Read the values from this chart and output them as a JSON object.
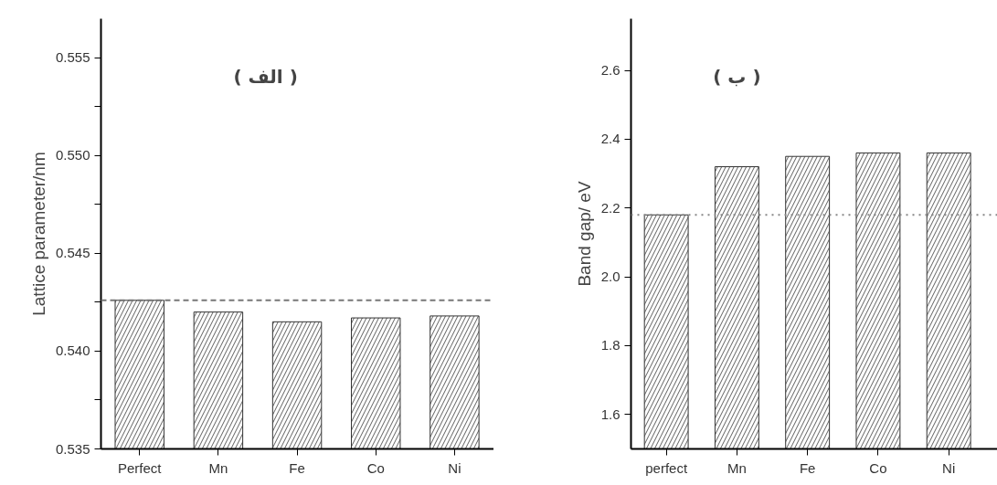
{
  "chart_data": [
    {
      "type": "bar",
      "title": "( الف )",
      "ylabel": "Lattice parameter/nm",
      "categories": [
        "Perfect",
        "Mn",
        "Fe",
        "Co",
        "Ni"
      ],
      "values": [
        0.5426,
        0.542,
        0.5415,
        0.5417,
        0.5418
      ],
      "color": "#ffffff",
      "ylim": [
        0.535,
        0.557
      ],
      "yticks": [
        0.535,
        {
          "value": 0.5375,
          "label": null
        },
        {
          "value": 0.54,
          "label": "0.540"
        },
        {
          "value": 0.5425,
          "label": null
        },
        0.545,
        {
          "value": 0.5475,
          "label": null
        },
        {
          "value": 0.55,
          "label": "0.550"
        },
        {
          "value": 0.5525,
          "label": null
        },
        0.555
      ],
      "ref_lines": [
        {
          "axis": "y",
          "value": 0.5426,
          "line_style": "dashed",
          "color": "#777777"
        }
      ],
      "grid": false
    },
    {
      "type": "bar",
      "title": "( ب )",
      "ylabel": "Band gap/ eV",
      "categories": [
        "perfect",
        "Mn",
        "Fe",
        "Co",
        "Ni"
      ],
      "values": [
        2.18,
        2.32,
        2.35,
        2.36,
        2.36
      ],
      "color": "#ffffff",
      "ylim": [
        1.5,
        2.75
      ],
      "yticks": [
        1.6,
        1.8,
        {
          "value": 2.0,
          "label": "2.0"
        },
        2.2,
        2.4,
        2.6
      ],
      "ref_lines": [
        {
          "axis": "y",
          "value": 2.18,
          "line_style": "dotted",
          "color": "#888888"
        }
      ],
      "grid": false
    }
  ]
}
